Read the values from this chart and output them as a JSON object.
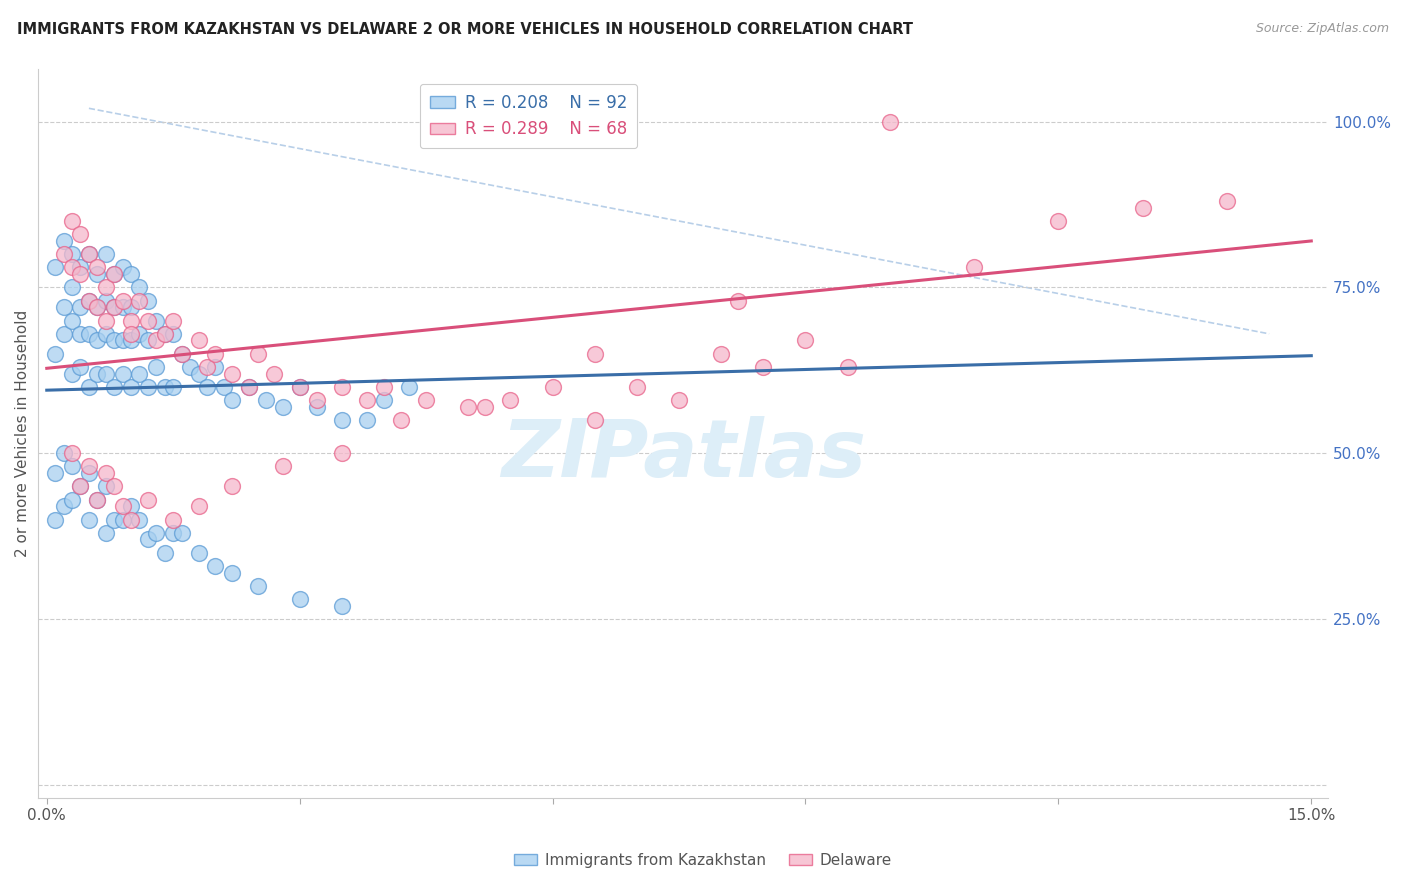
{
  "title": "IMMIGRANTS FROM KAZAKHSTAN VS DELAWARE 2 OR MORE VEHICLES IN HOUSEHOLD CORRELATION CHART",
  "source": "Source: ZipAtlas.com",
  "ylabel": "2 or more Vehicles in Household",
  "yticks": [
    0.0,
    0.25,
    0.5,
    0.75,
    1.0
  ],
  "ytick_labels": [
    "",
    "25.0%",
    "50.0%",
    "75.0%",
    "100.0%"
  ],
  "legend_blue_r": "R = 0.208",
  "legend_blue_n": "N = 92",
  "legend_pink_r": "R = 0.289",
  "legend_pink_n": "N = 68",
  "blue_color": "#a8d0f0",
  "pink_color": "#f5b8cb",
  "blue_edge_color": "#5b9bd5",
  "pink_edge_color": "#e8638a",
  "blue_line_color": "#3a6ea8",
  "pink_line_color": "#d94f7a",
  "dashed_line_color": "#b8cfe8",
  "watermark_color": "#ddeef8",
  "blue_scatter_x": [
    0.001,
    0.001,
    0.002,
    0.002,
    0.002,
    0.003,
    0.003,
    0.003,
    0.003,
    0.004,
    0.004,
    0.004,
    0.004,
    0.005,
    0.005,
    0.005,
    0.005,
    0.006,
    0.006,
    0.006,
    0.006,
    0.007,
    0.007,
    0.007,
    0.007,
    0.008,
    0.008,
    0.008,
    0.008,
    0.009,
    0.009,
    0.009,
    0.009,
    0.01,
    0.01,
    0.01,
    0.01,
    0.011,
    0.011,
    0.011,
    0.012,
    0.012,
    0.012,
    0.013,
    0.013,
    0.014,
    0.014,
    0.015,
    0.015,
    0.016,
    0.017,
    0.018,
    0.019,
    0.02,
    0.021,
    0.022,
    0.024,
    0.026,
    0.028,
    0.03,
    0.032,
    0.035,
    0.038,
    0.04,
    0.043,
    0.001,
    0.001,
    0.002,
    0.002,
    0.003,
    0.003,
    0.004,
    0.005,
    0.005,
    0.006,
    0.007,
    0.007,
    0.008,
    0.009,
    0.01,
    0.011,
    0.012,
    0.013,
    0.014,
    0.015,
    0.016,
    0.018,
    0.02,
    0.022,
    0.025,
    0.03,
    0.035
  ],
  "blue_scatter_y": [
    0.78,
    0.65,
    0.82,
    0.72,
    0.68,
    0.8,
    0.75,
    0.7,
    0.62,
    0.78,
    0.72,
    0.68,
    0.63,
    0.8,
    0.73,
    0.68,
    0.6,
    0.77,
    0.72,
    0.67,
    0.62,
    0.8,
    0.73,
    0.68,
    0.62,
    0.77,
    0.72,
    0.67,
    0.6,
    0.78,
    0.72,
    0.67,
    0.62,
    0.77,
    0.72,
    0.67,
    0.6,
    0.75,
    0.68,
    0.62,
    0.73,
    0.67,
    0.6,
    0.7,
    0.63,
    0.68,
    0.6,
    0.68,
    0.6,
    0.65,
    0.63,
    0.62,
    0.6,
    0.63,
    0.6,
    0.58,
    0.6,
    0.58,
    0.57,
    0.6,
    0.57,
    0.55,
    0.55,
    0.58,
    0.6,
    0.47,
    0.4,
    0.5,
    0.42,
    0.48,
    0.43,
    0.45,
    0.47,
    0.4,
    0.43,
    0.45,
    0.38,
    0.4,
    0.4,
    0.42,
    0.4,
    0.37,
    0.38,
    0.35,
    0.38,
    0.38,
    0.35,
    0.33,
    0.32,
    0.3,
    0.28,
    0.27
  ],
  "pink_scatter_x": [
    0.002,
    0.003,
    0.003,
    0.004,
    0.004,
    0.005,
    0.005,
    0.006,
    0.006,
    0.007,
    0.007,
    0.008,
    0.008,
    0.009,
    0.01,
    0.01,
    0.011,
    0.012,
    0.013,
    0.014,
    0.015,
    0.016,
    0.018,
    0.019,
    0.02,
    0.022,
    0.024,
    0.025,
    0.027,
    0.03,
    0.032,
    0.035,
    0.038,
    0.04,
    0.045,
    0.05,
    0.055,
    0.06,
    0.065,
    0.07,
    0.075,
    0.08,
    0.085,
    0.09,
    0.095,
    0.1,
    0.11,
    0.12,
    0.13,
    0.14,
    0.003,
    0.004,
    0.005,
    0.006,
    0.007,
    0.008,
    0.009,
    0.01,
    0.012,
    0.015,
    0.018,
    0.022,
    0.028,
    0.035,
    0.042,
    0.052,
    0.065,
    0.082
  ],
  "pink_scatter_y": [
    0.8,
    0.85,
    0.78,
    0.83,
    0.77,
    0.8,
    0.73,
    0.78,
    0.72,
    0.75,
    0.7,
    0.77,
    0.72,
    0.73,
    0.7,
    0.68,
    0.73,
    0.7,
    0.67,
    0.68,
    0.7,
    0.65,
    0.67,
    0.63,
    0.65,
    0.62,
    0.6,
    0.65,
    0.62,
    0.6,
    0.58,
    0.6,
    0.58,
    0.6,
    0.58,
    0.57,
    0.58,
    0.6,
    0.55,
    0.6,
    0.58,
    0.65,
    0.63,
    0.67,
    0.63,
    1.0,
    0.78,
    0.85,
    0.87,
    0.88,
    0.5,
    0.45,
    0.48,
    0.43,
    0.47,
    0.45,
    0.42,
    0.4,
    0.43,
    0.4,
    0.42,
    0.45,
    0.48,
    0.5,
    0.55,
    0.57,
    0.65,
    0.73
  ],
  "blue_line_x": [
    0.0,
    0.15
  ],
  "blue_line_y": [
    0.595,
    0.647
  ],
  "pink_line_x": [
    0.0,
    0.15
  ],
  "pink_line_y": [
    0.628,
    0.82
  ],
  "dashed_line_x": [
    0.005,
    0.145
  ],
  "dashed_line_y": [
    1.02,
    0.68
  ],
  "xlim": [
    -0.001,
    0.152
  ],
  "ylim": [
    -0.02,
    1.08
  ],
  "figsize": [
    14.06,
    8.92
  ],
  "dpi": 100
}
